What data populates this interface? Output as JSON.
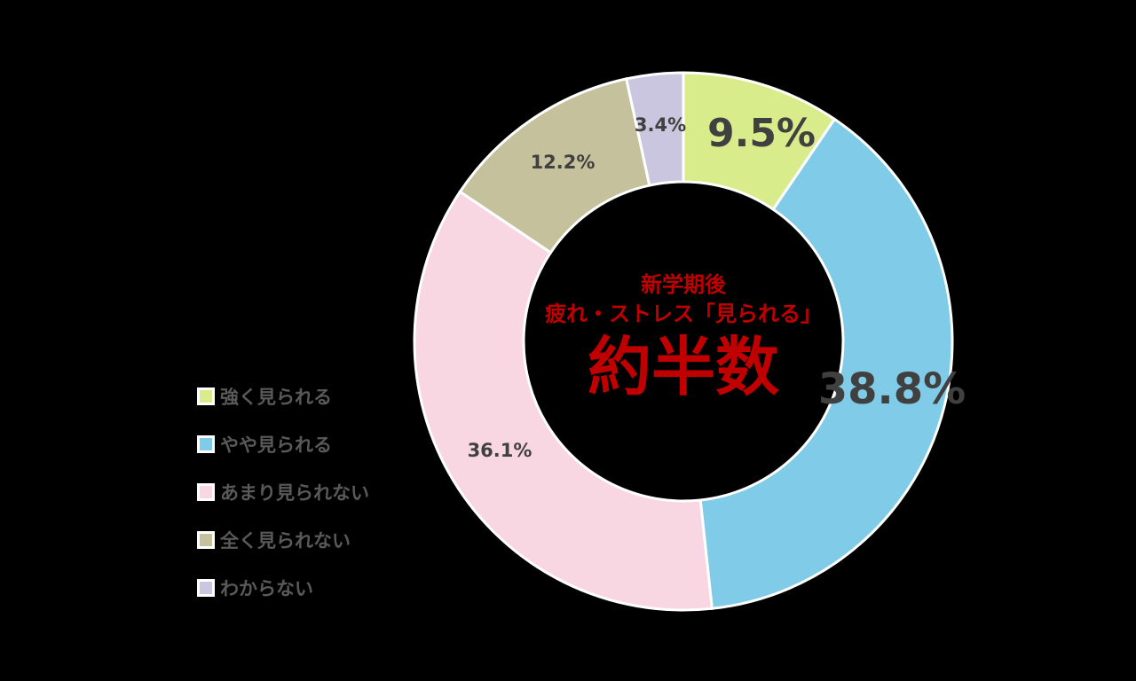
{
  "chart_data": {
    "type": "pie",
    "donut": true,
    "start": "top, clockwise",
    "categories": [
      "強く見られる",
      "やや見られる",
      "あまり見られない",
      "全く見られない",
      "わからない"
    ],
    "values": [
      9.5,
      38.8,
      36.1,
      12.2,
      3.4
    ],
    "data_labels": [
      "9.5%",
      "38.8%",
      "36.1%",
      "12.2%",
      "3.4%"
    ],
    "colors": [
      "#d9ec8c",
      "#7fcbe8",
      "#f8d7e3",
      "#c6c19d",
      "#cbc6df"
    ],
    "legend_position": "left",
    "center_text": [
      "新学期後",
      "疲れ・ストレス「見られる」",
      "約半数"
    ],
    "center_text_color": "#c00000",
    "label_color": "#404040"
  }
}
